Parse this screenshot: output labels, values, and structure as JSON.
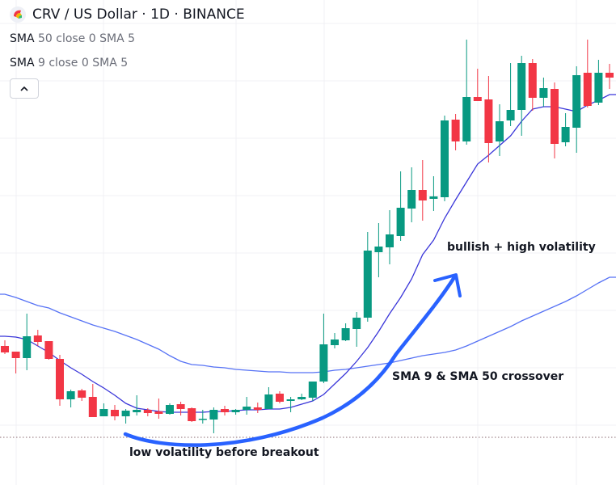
{
  "header": {
    "title": "CRV / US Dollar · 1D · BINANCE",
    "logo_icon": "curve-logo-icon"
  },
  "legend": [
    {
      "name": "SMA",
      "params": "50 close 0 SMA 5"
    },
    {
      "name": "SMA",
      "params": "9 close 0 SMA 5"
    }
  ],
  "collapse_icon": "chevron-up-icon",
  "annotations": {
    "bullish": "bullish + high volatility",
    "crossover": "SMA 9 & SMA 50 crossover",
    "low_vol": "low volatility before breakout"
  },
  "colors": {
    "up": "#089981",
    "down": "#f23645",
    "sma50": "#5672f5",
    "sma9": "#3a36d9",
    "arrow": "#2962ff",
    "grid": "#f0f1f4"
  },
  "chart_data": {
    "type": "candlestick",
    "title": "CRV / US Dollar · 1D · BINANCE",
    "price_axis_shown": false,
    "grid": true,
    "ohlc_order": [
      "open",
      "high",
      "low",
      "close"
    ],
    "candles": [
      [
        1.72,
        1.79,
        1.62,
        1.64
      ],
      [
        1.65,
        1.65,
        1.38,
        1.57
      ],
      [
        1.57,
        2.12,
        1.42,
        1.84
      ],
      [
        1.85,
        1.92,
        1.72,
        1.77
      ],
      [
        1.78,
        1.78,
        1.55,
        1.56
      ],
      [
        1.56,
        1.61,
        0.98,
        1.06
      ],
      [
        1.06,
        1.18,
        0.96,
        1.16
      ],
      [
        1.17,
        1.19,
        1.04,
        1.08
      ],
      [
        1.09,
        1.25,
        0.84,
        0.84
      ],
      [
        0.85,
        1.01,
        0.85,
        0.94
      ],
      [
        0.93,
        0.99,
        0.8,
        0.85
      ],
      [
        0.85,
        0.94,
        0.76,
        0.92
      ],
      [
        0.9,
        1.11,
        0.86,
        0.93
      ],
      [
        0.93,
        0.95,
        0.85,
        0.89
      ],
      [
        0.91,
        1.07,
        0.82,
        0.88
      ],
      [
        0.88,
        1.01,
        0.87,
        0.99
      ],
      [
        1.0,
        1.03,
        0.86,
        0.94
      ],
      [
        0.95,
        0.96,
        0.78,
        0.79
      ],
      [
        0.81,
        0.93,
        0.76,
        0.82
      ],
      [
        0.81,
        0.96,
        0.64,
        0.93
      ],
      [
        0.94,
        0.98,
        0.86,
        0.9
      ],
      [
        0.9,
        0.94,
        0.87,
        0.93
      ],
      [
        0.93,
        1.09,
        0.87,
        0.97
      ],
      [
        0.96,
        1.02,
        0.89,
        0.93
      ],
      [
        0.94,
        1.21,
        0.94,
        1.12
      ],
      [
        1.13,
        1.16,
        1.01,
        1.03
      ],
      [
        1.04,
        1.09,
        0.9,
        1.06
      ],
      [
        1.06,
        1.13,
        1.05,
        1.09
      ],
      [
        1.08,
        1.28,
        1.04,
        1.28
      ],
      [
        1.28,
        2.12,
        1.26,
        1.74
      ],
      [
        1.73,
        1.88,
        1.69,
        1.8
      ],
      [
        1.79,
        2.0,
        1.78,
        1.94
      ],
      [
        1.93,
        2.14,
        1.71,
        2.07
      ],
      [
        2.07,
        3.13,
        2.02,
        2.9
      ],
      [
        2.88,
        3.24,
        2.57,
        2.95
      ],
      [
        2.94,
        3.4,
        2.73,
        3.1
      ],
      [
        3.08,
        3.88,
        3.02,
        3.43
      ],
      [
        3.42,
        3.93,
        3.25,
        3.65
      ],
      [
        3.65,
        4.02,
        3.27,
        3.52
      ],
      [
        3.54,
        3.82,
        3.39,
        3.57
      ],
      [
        3.56,
        4.57,
        3.51,
        4.51
      ],
      [
        4.52,
        4.59,
        4.14,
        4.25
      ],
      [
        4.25,
        5.51,
        4.21,
        4.8
      ],
      [
        4.8,
        5.15,
        4.75,
        4.75
      ],
      [
        4.77,
        5.06,
        3.99,
        4.23
      ],
      [
        4.25,
        4.71,
        4.07,
        4.5
      ],
      [
        4.51,
        5.22,
        4.44,
        4.64
      ],
      [
        4.64,
        5.31,
        4.32,
        5.22
      ],
      [
        5.22,
        5.27,
        4.63,
        4.79
      ],
      [
        4.79,
        5.04,
        4.68,
        4.91
      ],
      [
        4.9,
        4.98,
        4.04,
        4.22
      ],
      [
        4.24,
        4.6,
        4.19,
        4.43
      ],
      [
        4.42,
        5.18,
        4.11,
        5.07
      ],
      [
        5.1,
        5.51,
        4.67,
        4.69
      ],
      [
        4.73,
        5.26,
        4.7,
        5.1
      ],
      [
        5.1,
        5.21,
        4.9,
        5.04
      ]
    ],
    "series": [
      {
        "name": "SMA 50",
        "values": [
          2.36,
          2.32,
          2.27,
          2.22,
          2.19,
          2.13,
          2.08,
          2.03,
          1.98,
          1.94,
          1.9,
          1.85,
          1.8,
          1.74,
          1.68,
          1.6,
          1.53,
          1.49,
          1.48,
          1.46,
          1.45,
          1.43,
          1.42,
          1.41,
          1.4,
          1.4,
          1.39,
          1.39,
          1.39,
          1.4,
          1.42,
          1.43,
          1.45,
          1.47,
          1.49,
          1.51,
          1.54,
          1.57,
          1.6,
          1.62,
          1.64,
          1.67,
          1.72,
          1.78,
          1.84,
          1.9,
          1.96,
          2.03,
          2.09,
          2.15,
          2.21,
          2.27,
          2.34,
          2.42,
          2.5,
          2.57
        ]
      },
      {
        "name": "SMA 9",
        "values": [
          1.84,
          1.83,
          1.8,
          1.72,
          1.64,
          1.54,
          1.45,
          1.37,
          1.28,
          1.2,
          1.11,
          1.01,
          0.95,
          0.93,
          0.91,
          0.9,
          0.9,
          0.9,
          0.9,
          0.91,
          0.91,
          0.92,
          0.93,
          0.93,
          0.94,
          0.94,
          0.96,
          1.0,
          1.04,
          1.12,
          1.25,
          1.38,
          1.53,
          1.7,
          1.9,
          2.12,
          2.32,
          2.55,
          2.85,
          3.03,
          3.3,
          3.53,
          3.75,
          3.97,
          4.08,
          4.2,
          4.32,
          4.5,
          4.65,
          4.68,
          4.68,
          4.65,
          4.62,
          4.7,
          4.76,
          4.83
        ]
      }
    ],
    "reference_line": {
      "style": "dotted",
      "value": 0.59
    }
  }
}
